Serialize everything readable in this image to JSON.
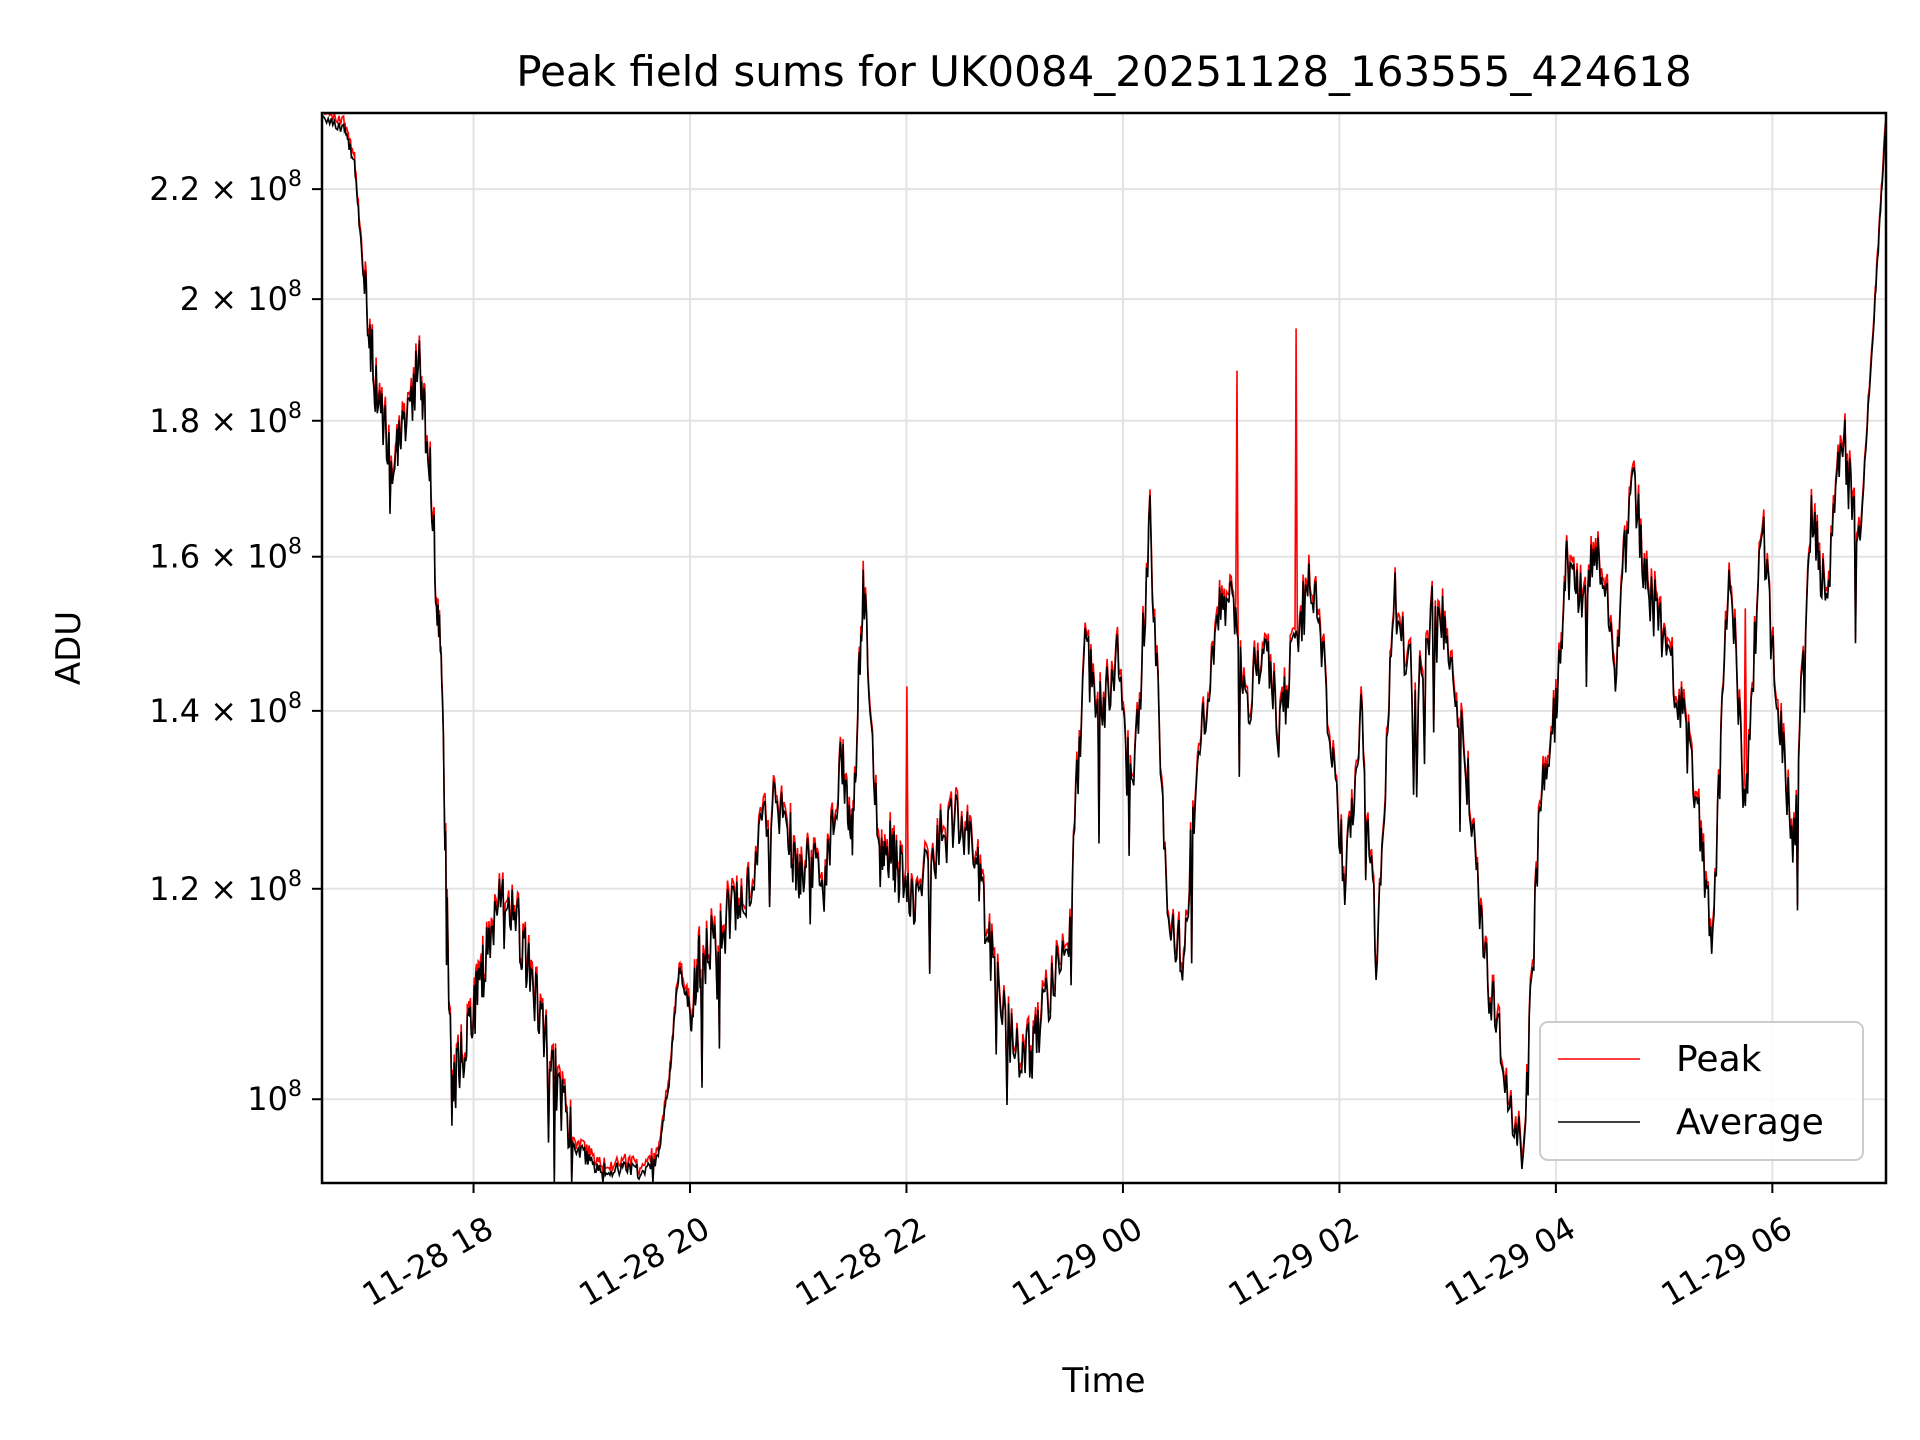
{
  "chart_data": {
    "type": "line",
    "title": "Peak field sums for UK0084_20251128_163555_424618",
    "xlabel": "Time",
    "ylabel": "ADU",
    "x_unit": "hours",
    "x_ticks": [
      {
        "label": "11-28 18",
        "value": 18
      },
      {
        "label": "11-28 20",
        "value": 20
      },
      {
        "label": "11-28 22",
        "value": 22
      },
      {
        "label": "11-29 00",
        "value": 24
      },
      {
        "label": "11-29 02",
        "value": 26
      },
      {
        "label": "11-29 04",
        "value": 28
      },
      {
        "label": "11-29 06",
        "value": 30
      }
    ],
    "y_scale": "log",
    "y_ticks": [
      {
        "label_base": "10",
        "label_exp": "8",
        "value": 100000000
      },
      {
        "label_base": "1.2 × 10",
        "label_exp": "8",
        "value": 120000000
      },
      {
        "label_base": "1.4 × 10",
        "label_exp": "8",
        "value": 140000000
      },
      {
        "label_base": "1.6 × 10",
        "label_exp": "8",
        "value": 160000000
      },
      {
        "label_base": "1.8 × 10",
        "label_exp": "8",
        "value": 180000000
      },
      {
        "label_base": "2 × 10",
        "label_exp": "8",
        "value": 200000000
      },
      {
        "label_base": "2.2 × 10",
        "label_exp": "8",
        "value": 220000000
      }
    ],
    "xlim": [
      16.6,
      31.05
    ],
    "ylim": [
      93000000,
      235000000
    ],
    "grid": true,
    "legend_position": "lower-right",
    "colors": {
      "peak": "#ff0000",
      "average": "#000000"
    },
    "series_names": {
      "peak": "Peak",
      "average": "Average"
    },
    "x": [
      16.6,
      16.8,
      16.9,
      17.0,
      17.1,
      17.25,
      17.35,
      17.5,
      17.6,
      17.7,
      17.8,
      17.9,
      18.0,
      18.1,
      18.25,
      18.4,
      18.5,
      18.65,
      18.8,
      18.95,
      19.1,
      19.25,
      19.4,
      19.55,
      19.7,
      19.8,
      19.9,
      20.0,
      20.1,
      20.25,
      20.4,
      20.55,
      20.75,
      20.9,
      21.0,
      21.1,
      21.25,
      21.4,
      21.5,
      21.6,
      21.75,
      21.85,
      21.95,
      22.1,
      22.3,
      22.5,
      22.65,
      22.8,
      23.0,
      23.15,
      23.3,
      23.5,
      23.65,
      23.8,
      23.95,
      24.1,
      24.25,
      24.4,
      24.55,
      24.7,
      24.85,
      25.0,
      25.15,
      25.3,
      25.45,
      25.6,
      25.75,
      25.9,
      26.05,
      26.2,
      26.35,
      26.5,
      26.7,
      26.9,
      27.05,
      27.2,
      27.35,
      27.5,
      27.7,
      27.85,
      28.0,
      28.1,
      28.25,
      28.4,
      28.55,
      28.7,
      28.85,
      29.0,
      29.15,
      29.3,
      29.45,
      29.6,
      29.75,
      29.9,
      30.05,
      30.2,
      30.35,
      30.5,
      30.65,
      30.8,
      30.95,
      31.05
    ],
    "average": [
      234000000,
      232000000,
      225000000,
      200000000,
      185000000,
      175000000,
      180000000,
      188000000,
      172000000,
      145000000,
      100000000,
      104000000,
      108000000,
      112000000,
      120000000,
      117000000,
      112000000,
      106000000,
      100000000,
      96000000,
      94500000,
      94000000,
      94300000,
      93800000,
      95000000,
      101000000,
      112000000,
      108000000,
      113000000,
      115000000,
      118000000,
      120000000,
      130000000,
      128000000,
      120000000,
      124000000,
      120000000,
      135000000,
      125000000,
      158000000,
      122000000,
      124000000,
      121000000,
      119000000,
      125000000,
      128000000,
      122000000,
      112000000,
      104000000,
      104000000,
      109000000,
      116000000,
      147000000,
      140000000,
      148000000,
      130000000,
      165000000,
      120000000,
      112000000,
      135000000,
      150000000,
      157000000,
      140000000,
      150000000,
      137000000,
      150000000,
      157000000,
      140000000,
      120000000,
      140000000,
      112000000,
      155000000,
      142000000,
      155000000,
      145000000,
      130000000,
      112000000,
      104000000,
      94000000,
      128000000,
      140000000,
      158000000,
      155000000,
      160000000,
      145000000,
      172000000,
      155000000,
      150000000,
      140000000,
      130000000,
      115000000,
      160000000,
      128000000,
      165000000,
      140000000,
      125000000,
      165000000,
      155000000,
      178000000,
      160000000,
      200000000,
      234000000
    ]
  },
  "peak_spikes": [
    {
      "x": 22.0,
      "peak": 143000000
    },
    {
      "x": 25.05,
      "peak": 188000000
    },
    {
      "x": 25.6,
      "peak": 195000000
    },
    {
      "x": 29.75,
      "peak": 153000000
    }
  ]
}
